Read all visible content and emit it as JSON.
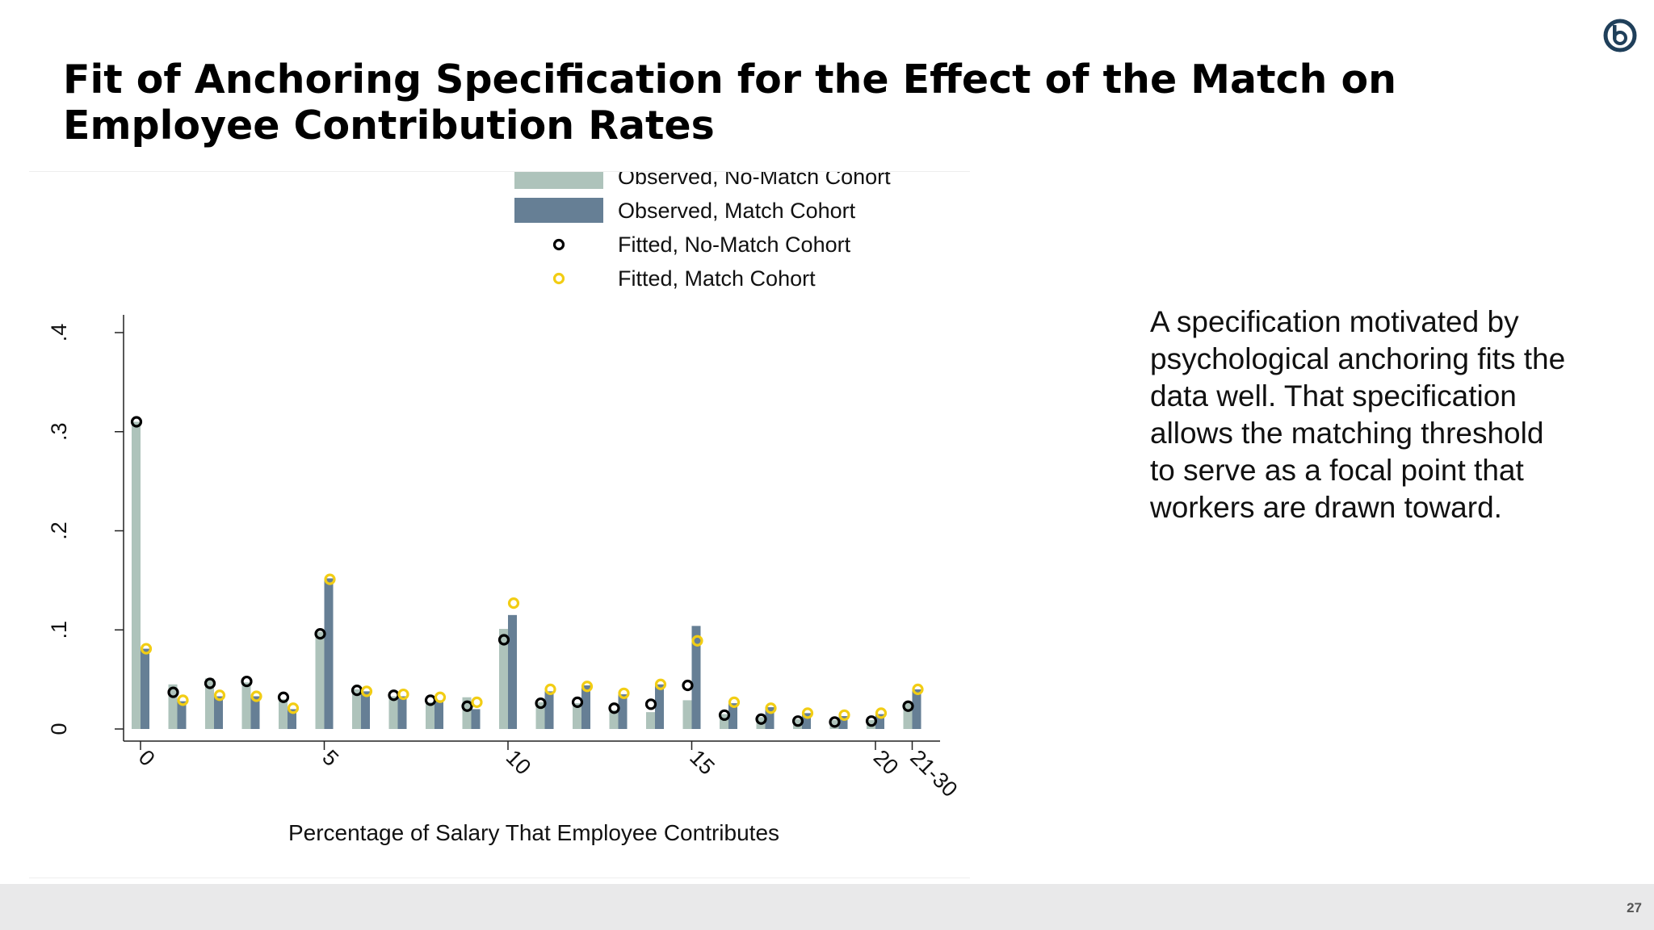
{
  "slide": {
    "title": "Fit of Anchoring Specification for the Effect of the Match on Employee Contribution Rates",
    "side_text": "A specification motivated by psychological anchoring fits the data well. That specification allows the matching threshold to serve as a focal point that workers are drawn toward.",
    "page_number": "27",
    "logo_icon": "circle-b-logo-icon"
  },
  "colors": {
    "observed_no_match": "#aec3bb",
    "observed_match": "#667f95",
    "fitted_no_match": "#000000",
    "fitted_match": "#f2cd14",
    "footer": "#e9e9ea",
    "logo": "#1f3f5a"
  },
  "chart_data": {
    "type": "bar",
    "xlabel": "Percentage of Salary That Employee Contributes",
    "ylabel": "",
    "ylim": [
      0,
      0.4
    ],
    "yticks": [
      {
        "value": 0,
        "label": "0"
      },
      {
        "value": 0.1,
        "label": ".1"
      },
      {
        "value": 0.2,
        "label": ".2"
      },
      {
        "value": 0.3,
        "label": ".3"
      },
      {
        "value": 0.4,
        "label": ".4"
      }
    ],
    "xticks": [
      {
        "index": 0,
        "label": "0"
      },
      {
        "index": 5,
        "label": "5"
      },
      {
        "index": 10,
        "label": "10"
      },
      {
        "index": 15,
        "label": "15"
      },
      {
        "index": 20,
        "label": "20"
      },
      {
        "index": 21,
        "label": "21-30"
      }
    ],
    "categories": [
      "0",
      "1",
      "2",
      "3",
      "4",
      "5",
      "6",
      "7",
      "8",
      "9",
      "10",
      "11",
      "12",
      "13",
      "14",
      "15",
      "16",
      "17",
      "18",
      "19",
      "20",
      "21-30"
    ],
    "legend_position": "top-right",
    "series": [
      {
        "name": "Observed, No-Match Cohort",
        "kind": "bar",
        "values": [
          0.31,
          0.045,
          0.051,
          0.047,
          0.03,
          0.098,
          0.04,
          0.033,
          0.027,
          0.032,
          0.101,
          0.027,
          0.026,
          0.019,
          0.017,
          0.029,
          0.015,
          0.012,
          0.01,
          0.009,
          0.009,
          0.027
        ]
      },
      {
        "name": "Observed, Match Cohort",
        "kind": "bar",
        "values": [
          0.081,
          0.028,
          0.033,
          0.033,
          0.02,
          0.152,
          0.038,
          0.033,
          0.029,
          0.02,
          0.115,
          0.038,
          0.044,
          0.035,
          0.045,
          0.104,
          0.026,
          0.022,
          0.016,
          0.013,
          0.015,
          0.04
        ]
      },
      {
        "name": "Fitted, No-Match Cohort",
        "kind": "point",
        "values": [
          0.31,
          0.037,
          0.046,
          0.048,
          0.032,
          0.096,
          0.039,
          0.034,
          0.029,
          0.023,
          0.09,
          0.026,
          0.027,
          0.021,
          0.025,
          0.044,
          0.014,
          0.01,
          0.008,
          0.007,
          0.008,
          0.023
        ]
      },
      {
        "name": "Fitted, Match Cohort",
        "kind": "point",
        "values": [
          0.081,
          0.029,
          0.034,
          0.033,
          0.021,
          0.151,
          0.038,
          0.035,
          0.032,
          0.027,
          0.127,
          0.04,
          0.043,
          0.036,
          0.045,
          0.089,
          0.027,
          0.021,
          0.016,
          0.014,
          0.016,
          0.04
        ]
      }
    ]
  }
}
